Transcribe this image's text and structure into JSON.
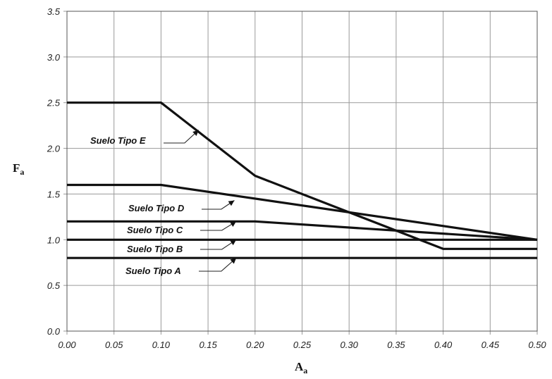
{
  "chart_data": {
    "type": "line",
    "title": "",
    "xlabel": {
      "main": "A",
      "sub": "a"
    },
    "ylabel": {
      "main": "F",
      "sub": "a"
    },
    "xlim": [
      0,
      0.5
    ],
    "ylim": [
      0,
      3.5
    ],
    "grid": true,
    "x_ticks": [
      "0.00",
      "0.05",
      "0.10",
      "0.15",
      "0.20",
      "0.25",
      "0.30",
      "0.35",
      "0.40",
      "0.45",
      "0.50"
    ],
    "y_ticks": [
      "0.0",
      "0.5",
      "1.0",
      "1.5",
      "2.0",
      "2.5",
      "3.0",
      "3.5"
    ],
    "series": [
      {
        "name": "Suelo Tipo A",
        "x": [
          0.0,
          0.5
        ],
        "y": [
          0.8,
          0.8
        ]
      },
      {
        "name": "Suelo Tipo B",
        "x": [
          0.0,
          0.5
        ],
        "y": [
          1.0,
          1.0
        ]
      },
      {
        "name": "Suelo Tipo C",
        "x": [
          0.0,
          0.2,
          0.5
        ],
        "y": [
          1.2,
          1.2,
          1.0
        ]
      },
      {
        "name": "Suelo Tipo D",
        "x": [
          0.0,
          0.1,
          0.5
        ],
        "y": [
          1.6,
          1.6,
          1.0
        ]
      },
      {
        "name": "Suelo Tipo E",
        "x": [
          0.0,
          0.1,
          0.2,
          0.4,
          0.5
        ],
        "y": [
          2.5,
          2.5,
          1.7,
          0.9,
          0.9
        ]
      }
    ],
    "annotations": [
      {
        "text": "Suelo Tipo E",
        "series": 4,
        "point": [
          0.14,
          2.2
        ]
      },
      {
        "text": "Suelo Tipo D",
        "series": 3,
        "point": [
          0.178,
          1.43
        ]
      },
      {
        "text": "Suelo Tipo C",
        "series": 2,
        "point": [
          0.18,
          1.2
        ]
      },
      {
        "text": "Suelo Tipo B",
        "series": 1,
        "point": [
          0.18,
          1.0
        ]
      },
      {
        "text": "Suelo Tipo A",
        "series": 0,
        "point": [
          0.18,
          0.8
        ]
      }
    ]
  }
}
